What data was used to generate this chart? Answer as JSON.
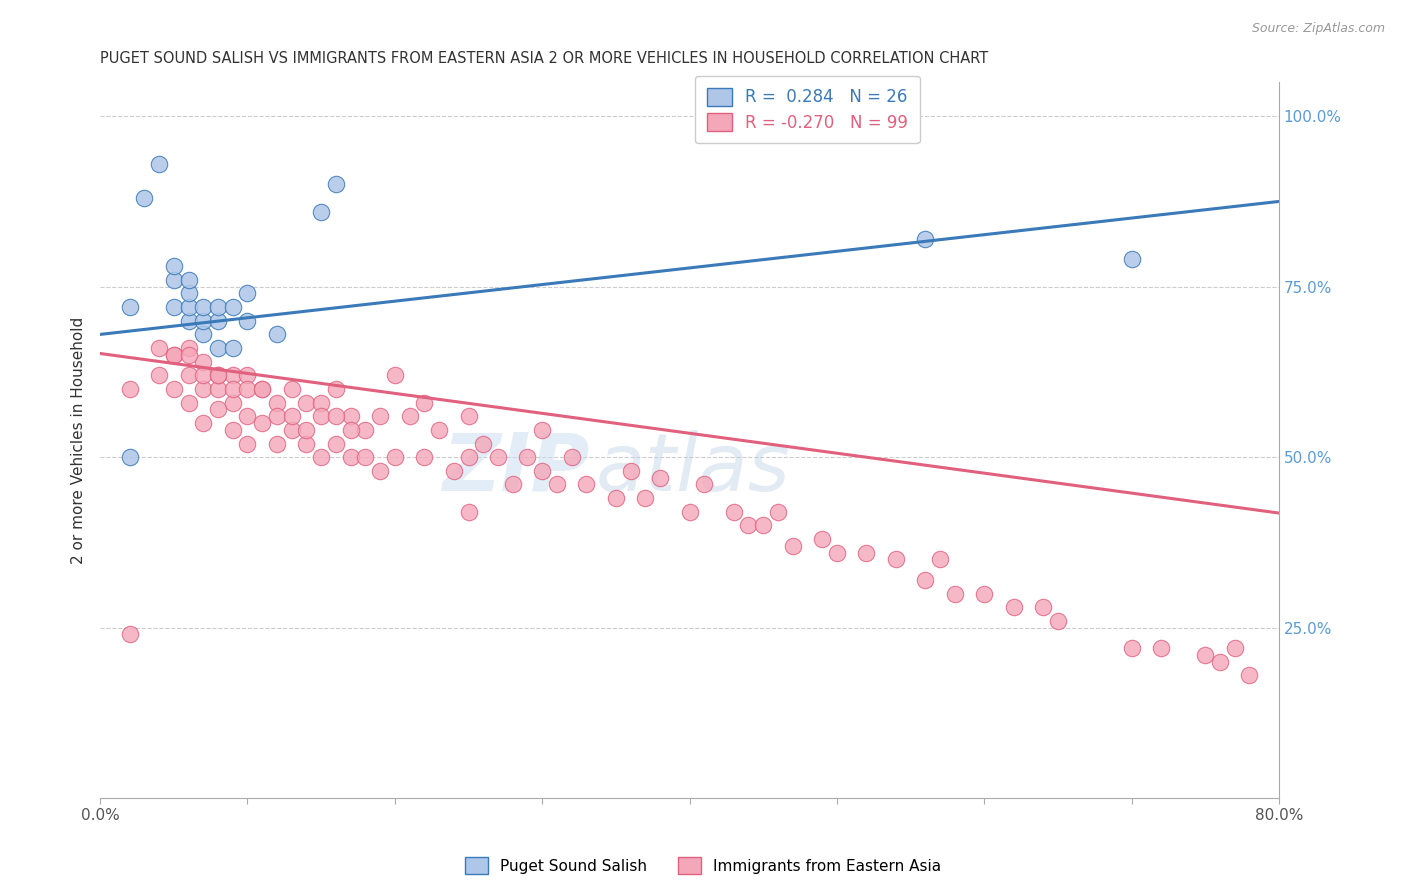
{
  "title": "PUGET SOUND SALISH VS IMMIGRANTS FROM EASTERN ASIA 2 OR MORE VEHICLES IN HOUSEHOLD CORRELATION CHART",
  "source_text": "Source: ZipAtlas.com",
  "ylabel": "2 or more Vehicles in Household",
  "xlim": [
    0.0,
    0.8
  ],
  "ylim": [
    0.0,
    1.05
  ],
  "legend_blue_r": "0.284",
  "legend_blue_n": "26",
  "legend_pink_r": "-0.270",
  "legend_pink_n": "99",
  "label_blue": "Puget Sound Salish",
  "label_pink": "Immigrants from Eastern Asia",
  "blue_color": "#aec6e8",
  "pink_color": "#f4a7b9",
  "blue_line_color": "#3a7ab8",
  "pink_line_color": "#e0607e",
  "watermark_zip": "ZIP",
  "watermark_atlas": "atlas",
  "blue_x": [
    0.02,
    0.03,
    0.04,
    0.05,
    0.05,
    0.05,
    0.06,
    0.06,
    0.06,
    0.06,
    0.07,
    0.07,
    0.07,
    0.08,
    0.08,
    0.08,
    0.09,
    0.09,
    0.1,
    0.1,
    0.12,
    0.15,
    0.16,
    0.56,
    0.7,
    0.02
  ],
  "blue_y": [
    0.72,
    0.88,
    0.93,
    0.72,
    0.76,
    0.78,
    0.7,
    0.72,
    0.74,
    0.76,
    0.68,
    0.7,
    0.72,
    0.66,
    0.7,
    0.72,
    0.66,
    0.72,
    0.7,
    0.74,
    0.68,
    0.86,
    0.9,
    0.82,
    0.79,
    0.5
  ],
  "pink_x": [
    0.02,
    0.04,
    0.04,
    0.05,
    0.05,
    0.06,
    0.06,
    0.06,
    0.07,
    0.07,
    0.07,
    0.08,
    0.08,
    0.08,
    0.09,
    0.09,
    0.09,
    0.1,
    0.1,
    0.1,
    0.11,
    0.11,
    0.12,
    0.12,
    0.13,
    0.13,
    0.14,
    0.14,
    0.15,
    0.15,
    0.16,
    0.16,
    0.17,
    0.17,
    0.18,
    0.18,
    0.19,
    0.19,
    0.2,
    0.2,
    0.21,
    0.22,
    0.22,
    0.23,
    0.24,
    0.25,
    0.25,
    0.26,
    0.27,
    0.28,
    0.29,
    0.3,
    0.3,
    0.31,
    0.32,
    0.33,
    0.35,
    0.36,
    0.37,
    0.38,
    0.4,
    0.41,
    0.43,
    0.44,
    0.45,
    0.46,
    0.47,
    0.49,
    0.5,
    0.52,
    0.54,
    0.56,
    0.57,
    0.58,
    0.6,
    0.62,
    0.64,
    0.65,
    0.7,
    0.72,
    0.75,
    0.76,
    0.77,
    0.78,
    0.02,
    0.05,
    0.06,
    0.07,
    0.08,
    0.09,
    0.1,
    0.11,
    0.12,
    0.13,
    0.14,
    0.15,
    0.16,
    0.17,
    0.25
  ],
  "pink_y": [
    0.24,
    0.62,
    0.66,
    0.6,
    0.65,
    0.58,
    0.62,
    0.66,
    0.55,
    0.6,
    0.64,
    0.57,
    0.6,
    0.62,
    0.54,
    0.58,
    0.62,
    0.52,
    0.56,
    0.62,
    0.55,
    0.6,
    0.52,
    0.58,
    0.54,
    0.6,
    0.52,
    0.58,
    0.5,
    0.58,
    0.52,
    0.6,
    0.5,
    0.56,
    0.5,
    0.54,
    0.48,
    0.56,
    0.5,
    0.62,
    0.56,
    0.5,
    0.58,
    0.54,
    0.48,
    0.5,
    0.56,
    0.52,
    0.5,
    0.46,
    0.5,
    0.48,
    0.54,
    0.46,
    0.5,
    0.46,
    0.44,
    0.48,
    0.44,
    0.47,
    0.42,
    0.46,
    0.42,
    0.4,
    0.4,
    0.42,
    0.37,
    0.38,
    0.36,
    0.36,
    0.35,
    0.32,
    0.35,
    0.3,
    0.3,
    0.28,
    0.28,
    0.26,
    0.22,
    0.22,
    0.21,
    0.2,
    0.22,
    0.18,
    0.6,
    0.65,
    0.65,
    0.62,
    0.62,
    0.6,
    0.6,
    0.6,
    0.56,
    0.56,
    0.54,
    0.56,
    0.56,
    0.54,
    0.42
  ],
  "blue_line_x0": 0.0,
  "blue_line_x1": 0.8,
  "blue_line_y0": 0.68,
  "blue_line_y1": 0.875,
  "pink_line_x0": 0.0,
  "pink_line_x1": 0.8,
  "pink_line_y0": 0.652,
  "pink_line_y1": 0.418
}
